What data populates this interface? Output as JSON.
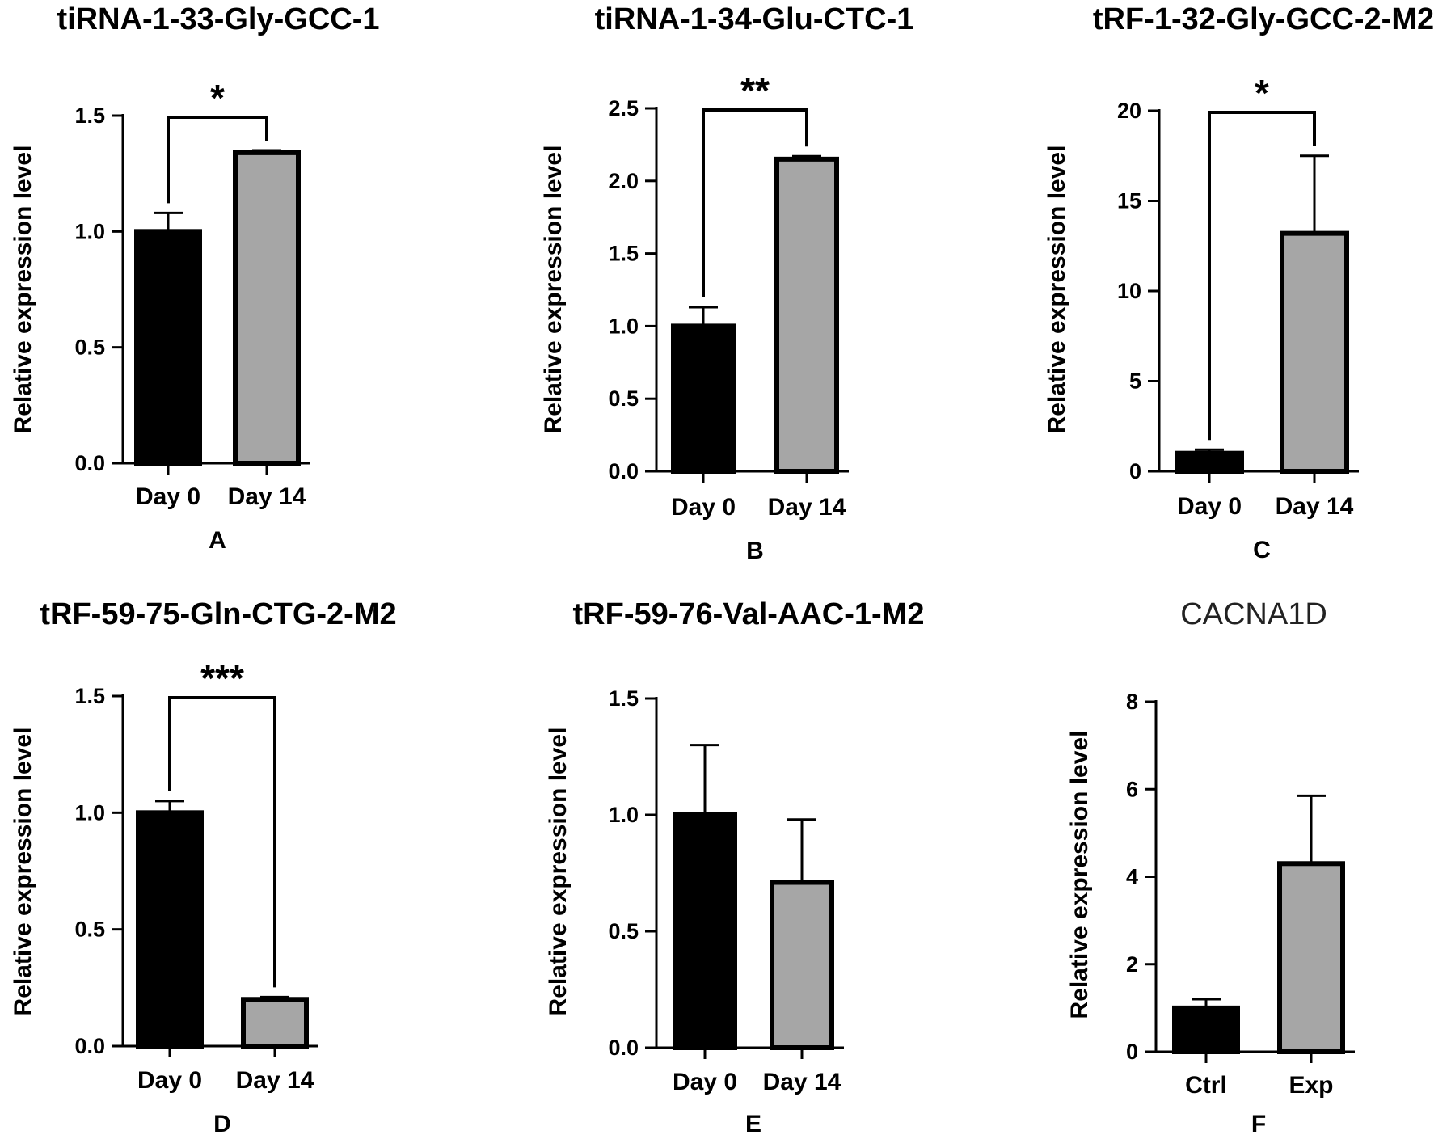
{
  "chart_data": [
    {
      "type": "bar",
      "title": "tiRNA-1-33-Gly-GCC-1",
      "panel_label": "A",
      "ylabel": "Relative expression level",
      "xlabel": "",
      "categories": [
        "Day 0",
        "Day 14"
      ],
      "values": [
        1.0,
        1.34
      ],
      "errors": [
        0.08,
        0.01
      ],
      "colors": [
        "#000000",
        "#a6a6a6"
      ],
      "ylim": [
        0,
        1.5
      ],
      "yticks": [
        "0.0",
        "0.5",
        "1.0",
        "1.5"
      ],
      "significance": "*"
    },
    {
      "type": "bar",
      "title": "tiRNA-1-34-Glu-CTC-1",
      "panel_label": "B",
      "ylabel": "Relative expression level",
      "xlabel": "",
      "categories": [
        "Day 0",
        "Day 14"
      ],
      "values": [
        1.0,
        2.15
      ],
      "errors": [
        0.13,
        0.02
      ],
      "colors": [
        "#000000",
        "#a6a6a6"
      ],
      "ylim": [
        0,
        2.5
      ],
      "yticks": [
        "0.0",
        "0.5",
        "1.0",
        "1.5",
        "2.0",
        "2.5"
      ],
      "significance": "**"
    },
    {
      "type": "bar",
      "title": "tRF-1-32-Gly-GCC-2-M2",
      "panel_label": "C",
      "ylabel": "Relative expression level",
      "xlabel": "",
      "categories": [
        "Day 0",
        "Day 14"
      ],
      "values": [
        1.0,
        13.2
      ],
      "errors": [
        0.2,
        4.3
      ],
      "colors": [
        "#000000",
        "#a6a6a6"
      ],
      "ylim": [
        0,
        20
      ],
      "yticks": [
        "0",
        "5",
        "10",
        "15",
        "20"
      ],
      "significance": "*"
    },
    {
      "type": "bar",
      "title": "tRF-59-75-Gln-CTG-2-M2",
      "panel_label": "D",
      "ylabel": "Relative expression level",
      "xlabel": "",
      "categories": [
        "Day 0",
        "Day 14"
      ],
      "values": [
        1.0,
        0.2
      ],
      "errors": [
        0.05,
        0.01
      ],
      "colors": [
        "#000000",
        "#a6a6a6"
      ],
      "ylim": [
        0,
        1.5
      ],
      "yticks": [
        "0.0",
        "0.5",
        "1.0",
        "1.5"
      ],
      "significance": "***"
    },
    {
      "type": "bar",
      "title": "tRF-59-76-Val-AAC-1-M2",
      "panel_label": "E",
      "ylabel": "Relative expression level",
      "xlabel": "",
      "categories": [
        "Day 0",
        "Day 14"
      ],
      "values": [
        1.0,
        0.71
      ],
      "errors": [
        0.3,
        0.27
      ],
      "colors": [
        "#000000",
        "#a6a6a6"
      ],
      "ylim": [
        0,
        1.5
      ],
      "yticks": [
        "0.0",
        "0.5",
        "1.0",
        "1.5"
      ],
      "significance": ""
    },
    {
      "type": "bar",
      "title": "CACNA1D",
      "panel_label": "F",
      "ylabel": "Relative expression level",
      "xlabel": "",
      "categories": [
        "Ctrl",
        "Exp"
      ],
      "values": [
        1.0,
        4.3
      ],
      "errors": [
        0.2,
        1.55
      ],
      "colors": [
        "#000000",
        "#a6a6a6"
      ],
      "ylim": [
        0,
        8
      ],
      "yticks": [
        "0",
        "2",
        "4",
        "6",
        "8"
      ],
      "significance": ""
    }
  ]
}
